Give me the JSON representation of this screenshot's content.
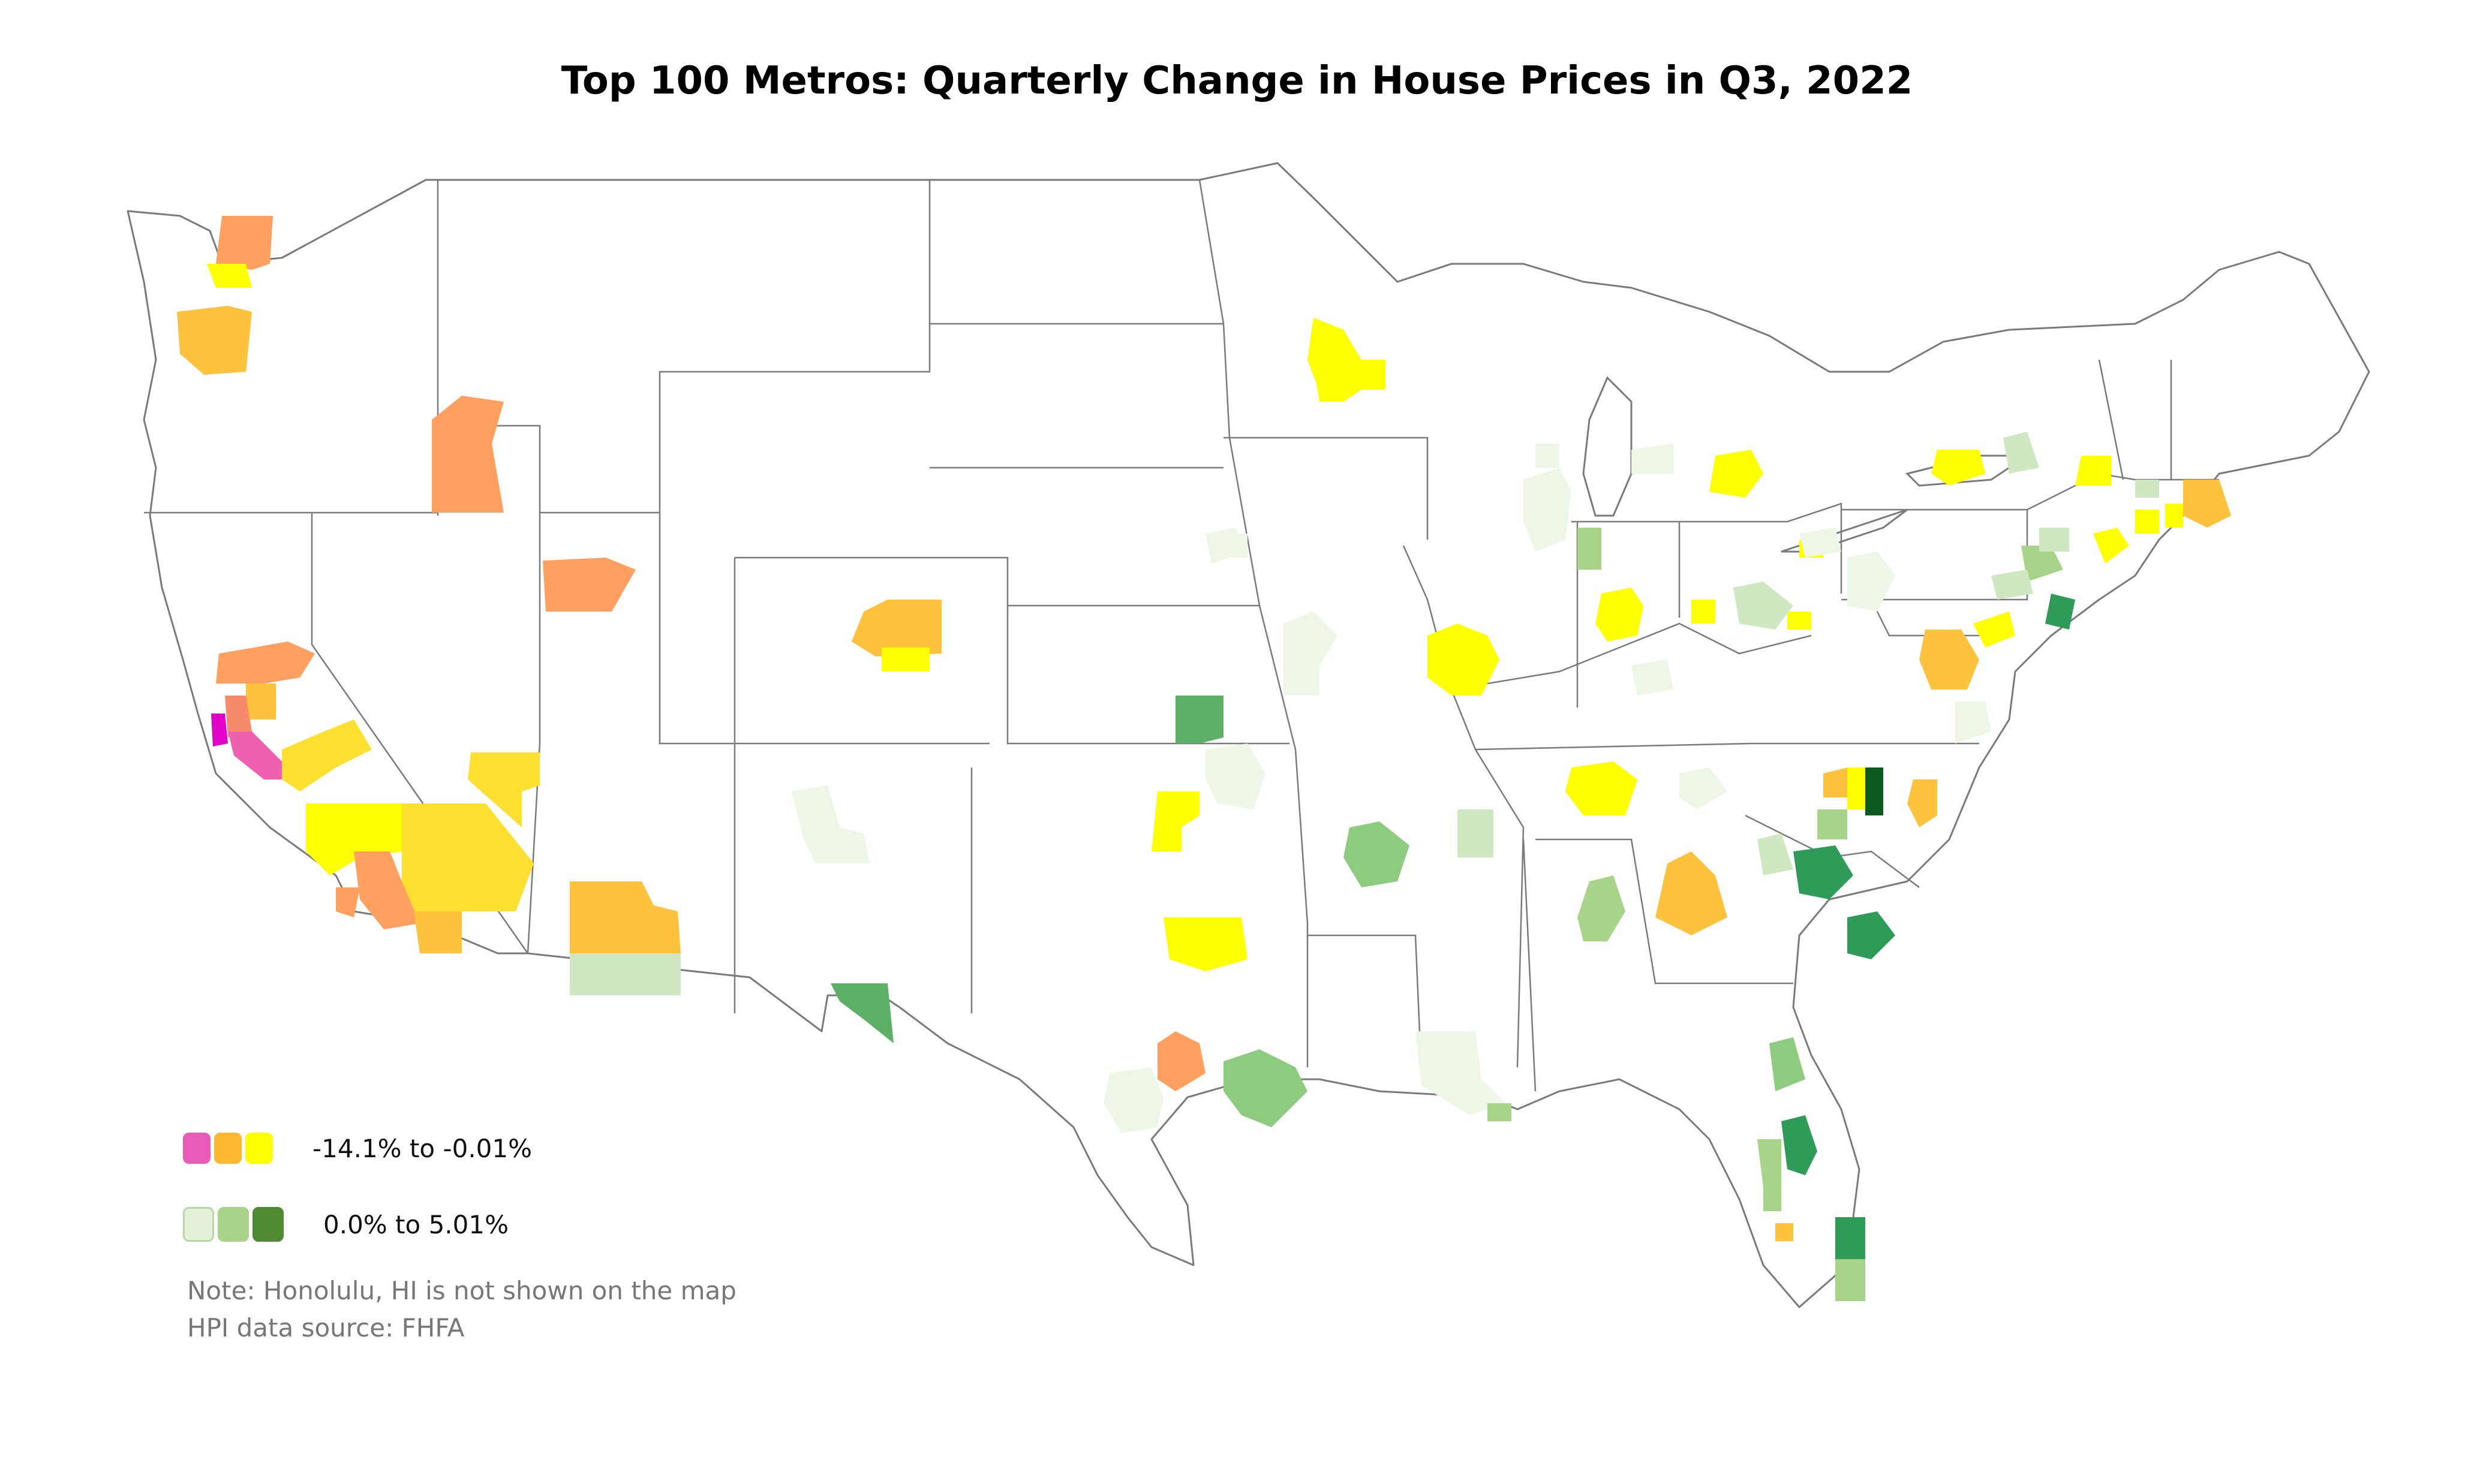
{
  "title": "Top 100 Metros: Quarterly Change in House Prices in Q3, 2022",
  "legend": {
    "negative": {
      "label": "-14.1% to -0.01%",
      "colors": [
        "#e85cb8",
        "#ffb732",
        "#ffff00"
      ]
    },
    "positive": {
      "label": "0.0% to 5.01%",
      "colors": [
        "#e3f2d9",
        "#a8d48a",
        "#4e8a33"
      ]
    }
  },
  "notes": [
    "Note: Honolulu, HI is not shown on the map",
    "HPI data source: FHFA"
  ],
  "map_colors": {
    "state_stroke": "#7a7a7a",
    "magenta": "#e000c8",
    "pink": "#f060b0",
    "salmon": "#f68a6a",
    "orange": "#ffa060",
    "orange_yellow": "#ffc23c",
    "gold": "#ffe030",
    "yellow": "#ffff00",
    "green_pale": "#edf6e7",
    "green_light": "#cfe8c2",
    "green_mid": "#8dcc7f",
    "green_strong": "#5cb066",
    "green_deep": "#2e9b58",
    "green_darkest": "#0c5a1f"
  }
}
